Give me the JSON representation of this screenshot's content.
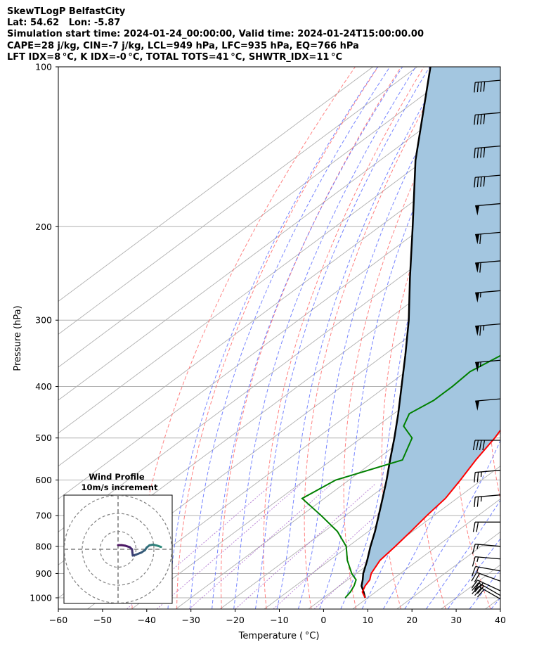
{
  "header": {
    "line1": "SkewTLogP BelfastCity",
    "line2": "Lat: 54.62   Lon: -5.87",
    "line3": "Simulation start time: 2024-01-24_00:00:00, Valid time: 2024-01-24T15:00:00.00",
    "line4": "CAPE=28 j/kg, CIN=-7 j/kg, LCL=949 hPa, LFC=935 hPa, EQ=766 hPa",
    "line5": "LFT IDX=8 °C, K IDX=-0 °C, TOTAL TOTS=41 °C, SHWTR_IDX=11 °C"
  },
  "axes": {
    "xlabel": "Temperature ( °C)",
    "ylabel": "Pressure (hPa)",
    "x_ticks": [
      "−60",
      "−50",
      "−40",
      "−30",
      "−20",
      "−10",
      "0",
      "10",
      "20",
      "30",
      "40"
    ],
    "y_ticks": [
      "100",
      "200",
      "300",
      "400",
      "500",
      "600",
      "700",
      "800",
      "900",
      "1000"
    ]
  },
  "inset": {
    "title_line1": "Wind Profile",
    "title_line2": "10m/s increment"
  },
  "colors": {
    "temperature": "#ff0000",
    "dewpoint": "#008000",
    "parcel": "#000000",
    "cape_fill": "#a3c6e0",
    "dry_adiabat": "#ff6b6b",
    "moist_adiabat": "#5566ff",
    "mixing_ratio": "#a35cc8",
    "isotherm_grid": "#b0b0b0"
  },
  "chart_data": {
    "type": "skewt",
    "x_range": [
      -60,
      40
    ],
    "p_range": [
      1050,
      100
    ],
    "skew_deg_per_log": 70,
    "temperature": [
      [
        1000,
        9.4
      ],
      [
        975,
        7.0
      ],
      [
        950,
        5.8
      ],
      [
        925,
        5.0
      ],
      [
        900,
        3.4
      ],
      [
        850,
        1.4
      ],
      [
        800,
        0.6
      ],
      [
        750,
        -0.4
      ],
      [
        700,
        -1.6
      ],
      [
        650,
        -2.6
      ],
      [
        600,
        -4.8
      ],
      [
        550,
        -7.4
      ],
      [
        500,
        -9.8
      ],
      [
        475,
        -11.4
      ],
      [
        450,
        -12.6
      ],
      [
        425,
        -14.5
      ],
      [
        400,
        -16.5
      ],
      [
        350,
        -22.0
      ],
      [
        300,
        -29.5
      ],
      [
        250,
        -38.0
      ],
      [
        225,
        -43.2
      ],
      [
        200,
        -48.0
      ],
      [
        185,
        -48.2
      ],
      [
        175,
        -48.0
      ],
      [
        160,
        -47.0
      ],
      [
        150,
        -45.8
      ],
      [
        140,
        -44.0
      ],
      [
        125,
        -42.4
      ],
      [
        110,
        -42.4
      ],
      [
        100,
        -41.8
      ]
    ],
    "dewpoint": [
      [
        1000,
        4.9
      ],
      [
        975,
        4.3
      ],
      [
        950,
        3.3
      ],
      [
        925,
        1.9
      ],
      [
        900,
        -1.0
      ],
      [
        850,
        -6.0
      ],
      [
        800,
        -10.5
      ],
      [
        750,
        -17.0
      ],
      [
        700,
        -25.5
      ],
      [
        650,
        -35.0
      ],
      [
        600,
        -33.0
      ],
      [
        550,
        -24.0
      ],
      [
        500,
        -28.5
      ],
      [
        475,
        -34.0
      ],
      [
        450,
        -36.5
      ],
      [
        425,
        -35.0
      ],
      [
        400,
        -35.0
      ],
      [
        375,
        -35.5
      ],
      [
        350,
        -33.5
      ],
      [
        325,
        -30.0
      ],
      [
        300,
        -30.0
      ],
      [
        275,
        -34.0
      ],
      [
        250,
        -37.0
      ],
      [
        225,
        -39.0
      ],
      [
        200,
        -44.0
      ],
      [
        175,
        -55.0
      ],
      [
        160,
        -62.0
      ],
      [
        150,
        -64.5
      ],
      [
        140,
        -65.0
      ],
      [
        125,
        -64.0
      ],
      [
        100,
        -63.5
      ]
    ],
    "parcel": [
      [
        1000,
        9.4
      ],
      [
        975,
        7.3
      ],
      [
        950,
        5.0
      ],
      [
        925,
        3.4
      ],
      [
        900,
        1.6
      ],
      [
        850,
        -1.5
      ],
      [
        800,
        -5.0
      ],
      [
        750,
        -8.5
      ],
      [
        700,
        -12.5
      ],
      [
        650,
        -16.8
      ],
      [
        600,
        -21.5
      ],
      [
        550,
        -26.8
      ],
      [
        500,
        -32.5
      ],
      [
        450,
        -39.0
      ],
      [
        400,
        -46.5
      ],
      [
        350,
        -55.0
      ],
      [
        300,
        -65.0
      ],
      [
        250,
        -77.5
      ],
      [
        200,
        -92.5
      ],
      [
        150,
        -112.0
      ],
      [
        100,
        -137.0
      ]
    ],
    "wind_barbs": [
      {
        "p": 1005,
        "speed_kt": 30,
        "dir": 240
      },
      {
        "p": 990,
        "speed_kt": 30,
        "dir": 240
      },
      {
        "p": 970,
        "speed_kt": 25,
        "dir": 245
      },
      {
        "p": 930,
        "speed_kt": 20,
        "dir": 250
      },
      {
        "p": 890,
        "speed_kt": 15,
        "dir": 260
      },
      {
        "p": 845,
        "speed_kt": 15,
        "dir": 265
      },
      {
        "p": 800,
        "speed_kt": 15,
        "dir": 265
      },
      {
        "p": 720,
        "speed_kt": 20,
        "dir": 270
      },
      {
        "p": 640,
        "speed_kt": 25,
        "dir": 275
      },
      {
        "p": 575,
        "speed_kt": 25,
        "dir": 275
      },
      {
        "p": 505,
        "speed_kt": 40,
        "dir": 270
      },
      {
        "p": 422,
        "speed_kt": 50,
        "dir": 275
      },
      {
        "p": 357,
        "speed_kt": 55,
        "dir": 275
      },
      {
        "p": 305,
        "speed_kt": 65,
        "dir": 275
      },
      {
        "p": 264,
        "speed_kt": 55,
        "dir": 275
      },
      {
        "p": 232,
        "speed_kt": 60,
        "dir": 275
      },
      {
        "p": 205,
        "speed_kt": 60,
        "dir": 275
      },
      {
        "p": 181,
        "speed_kt": 50,
        "dir": 275
      },
      {
        "p": 160,
        "speed_kt": 40,
        "dir": 275
      },
      {
        "p": 141,
        "speed_kt": 40,
        "dir": 275
      },
      {
        "p": 122,
        "speed_kt": 40,
        "dir": 275
      },
      {
        "p": 106,
        "speed_kt": 40,
        "dir": 275
      }
    ],
    "hodograph": [
      [
        0.0,
        2.3
      ],
      [
        2.0,
        2.3
      ],
      [
        4.0,
        2.0
      ],
      [
        6.5,
        1.2
      ],
      [
        7.8,
        0.0
      ],
      [
        8.0,
        -1.8
      ],
      [
        8.2,
        -3.5
      ],
      [
        10.0,
        -3.0
      ],
      [
        13.0,
        -1.8
      ],
      [
        15.0,
        -0.5
      ],
      [
        16.0,
        1.0
      ],
      [
        17.5,
        2.2
      ],
      [
        19.5,
        2.6
      ],
      [
        22.0,
        2.0
      ],
      [
        24.0,
        1.3
      ]
    ],
    "hodograph_rings_ms": [
      10,
      20,
      30
    ]
  }
}
